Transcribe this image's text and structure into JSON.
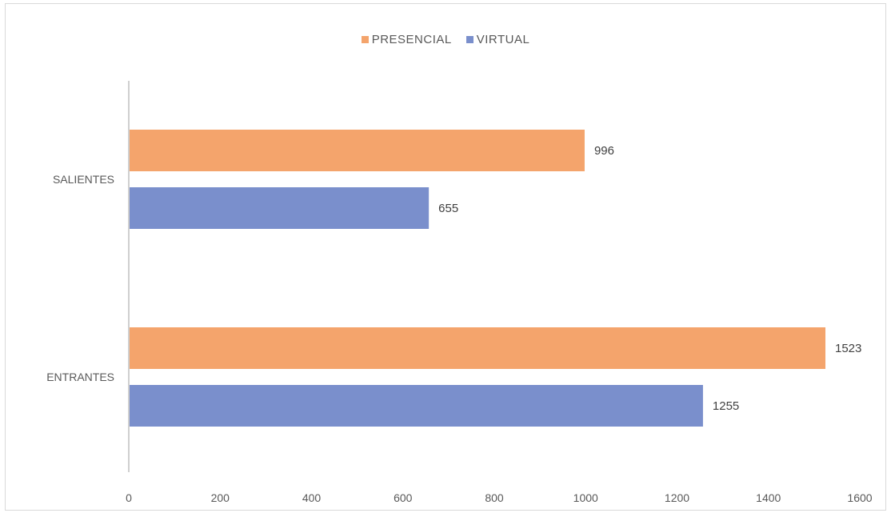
{
  "chart_data": {
    "type": "bar",
    "orientation": "horizontal",
    "title": "",
    "xlabel": "",
    "ylabel": "",
    "categories": [
      "SALIENTES",
      "ENTRANTES"
    ],
    "series": [
      {
        "name": "PRESENCIAL",
        "color": "#f4a46c",
        "values": [
          996,
          1523
        ]
      },
      {
        "name": "VIRTUAL",
        "color": "#7a8fcc",
        "values": [
          655,
          1255
        ]
      }
    ],
    "xlim": [
      0,
      1600
    ],
    "x_ticks": [
      "0",
      "200",
      "400",
      "600",
      "800",
      "1000",
      "1200",
      "1400",
      "1600"
    ],
    "grid": false,
    "legend_position": "top",
    "data_labels": true
  }
}
